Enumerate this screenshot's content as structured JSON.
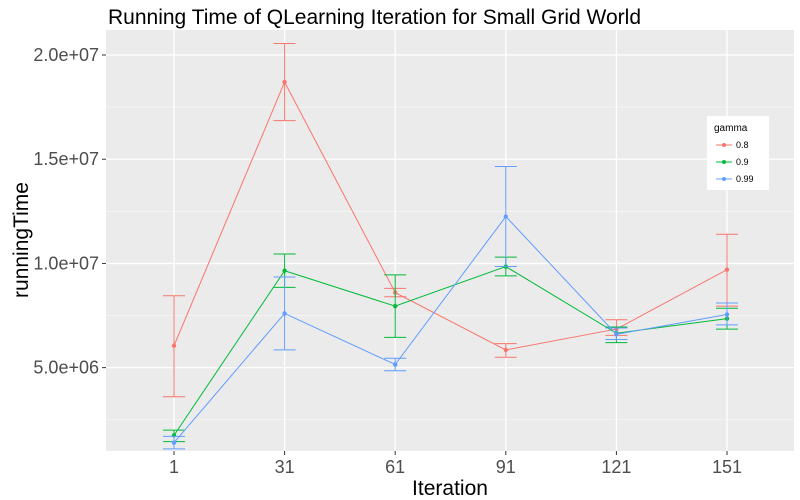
{
  "chart_data": {
    "type": "line",
    "title": "Running Time of QLearning Iteration for Small Grid World",
    "xlabel": "Iteration",
    "ylabel": "runningTime",
    "x": [
      1,
      31,
      61,
      91,
      121,
      151
    ],
    "x_tick_labels": [
      "1",
      "31",
      "61",
      "91",
      "121",
      "151"
    ],
    "y_ticks": [
      5000000,
      10000000,
      15000000,
      20000000
    ],
    "y_tick_labels": [
      "5.0e+06",
      "1.0e+07",
      "1.5e+07",
      "2.0e+07"
    ],
    "ylim": [
      1000000,
      21200000
    ],
    "grid": true,
    "error_bars": true,
    "legend": {
      "title": "gamma",
      "position": "right"
    },
    "series": [
      {
        "name": "0.8",
        "color": "#F8766D",
        "values": [
          6050000,
          18700000,
          8600000,
          5850000,
          6850000,
          9700000
        ],
        "lower": [
          3600000,
          16850000,
          8400000,
          5500000,
          6550000,
          7950000
        ],
        "upper": [
          8450000,
          20550000,
          8800000,
          6150000,
          7300000,
          11400000
        ]
      },
      {
        "name": "0.9",
        "color": "#00BA38",
        "values": [
          1750000,
          9650000,
          7950000,
          9850000,
          6650000,
          7350000
        ],
        "lower": [
          1450000,
          8850000,
          6450000,
          9400000,
          6200000,
          6850000
        ],
        "upper": [
          2000000,
          10450000,
          9450000,
          10300000,
          6950000,
          7850000
        ]
      },
      {
        "name": "0.99",
        "color": "#619CFF",
        "values": [
          1400000,
          7600000,
          5150000,
          12250000,
          6600000,
          7550000
        ],
        "lower": [
          1100000,
          5850000,
          4850000,
          9850000,
          6350000,
          7050000
        ],
        "upper": [
          1700000,
          9350000,
          5450000,
          14650000,
          6900000,
          8100000
        ]
      }
    ]
  }
}
